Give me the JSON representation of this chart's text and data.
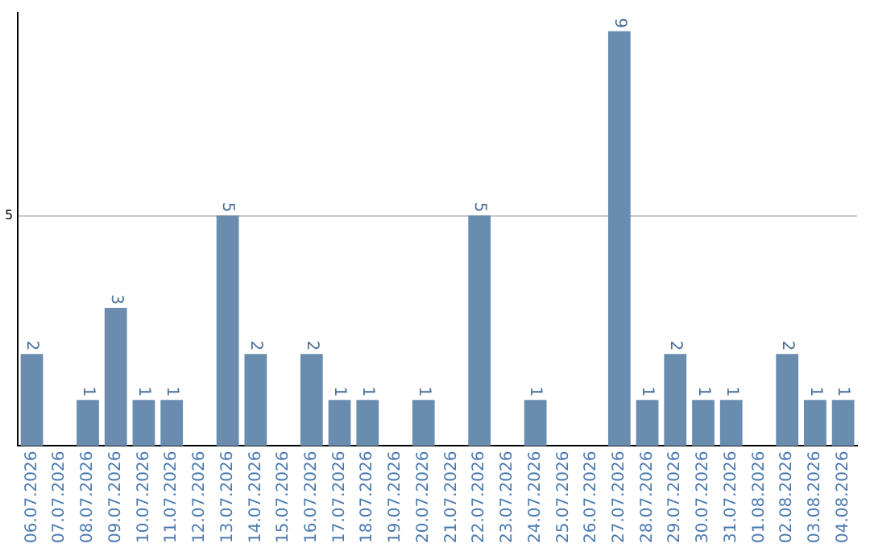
{
  "chart_data": {
    "type": "bar",
    "categories": [
      "06.07.2026",
      "07.07.2026",
      "08.07.2026",
      "09.07.2026",
      "10.07.2026",
      "11.07.2026",
      "12.07.2026",
      "13.07.2026",
      "14.07.2026",
      "15.07.2026",
      "16.07.2026",
      "17.07.2026",
      "18.07.2026",
      "19.07.2026",
      "20.07.2026",
      "21.07.2026",
      "22.07.2026",
      "23.07.2026",
      "24.07.2026",
      "25.07.2026",
      "26.07.2026",
      "27.07.2026",
      "28.07.2026",
      "29.07.2026",
      "30.07.2026",
      "31.07.2026",
      "01.08.2026",
      "02.08.2026",
      "03.08.2026",
      "04.08.2026"
    ],
    "values": [
      2,
      0,
      1,
      3,
      1,
      1,
      0,
      5,
      2,
      0,
      2,
      1,
      1,
      0,
      1,
      0,
      5,
      0,
      1,
      0,
      0,
      9,
      1,
      2,
      1,
      1,
      0,
      2,
      1,
      1
    ],
    "value_labels": [
      "2",
      null,
      "1",
      "3",
      "1",
      "1",
      null,
      "5",
      "2",
      null,
      "2",
      "1",
      "1",
      null,
      "1",
      null,
      "5",
      null,
      "1",
      null,
      null,
      "9",
      "1",
      "2",
      "1",
      "1",
      null,
      "2",
      "1",
      "1"
    ],
    "color": "#6a8caf",
    "ylim": [
      0,
      9.4
    ],
    "yticks": [
      5
    ],
    "grid": "y",
    "legend": false
  }
}
